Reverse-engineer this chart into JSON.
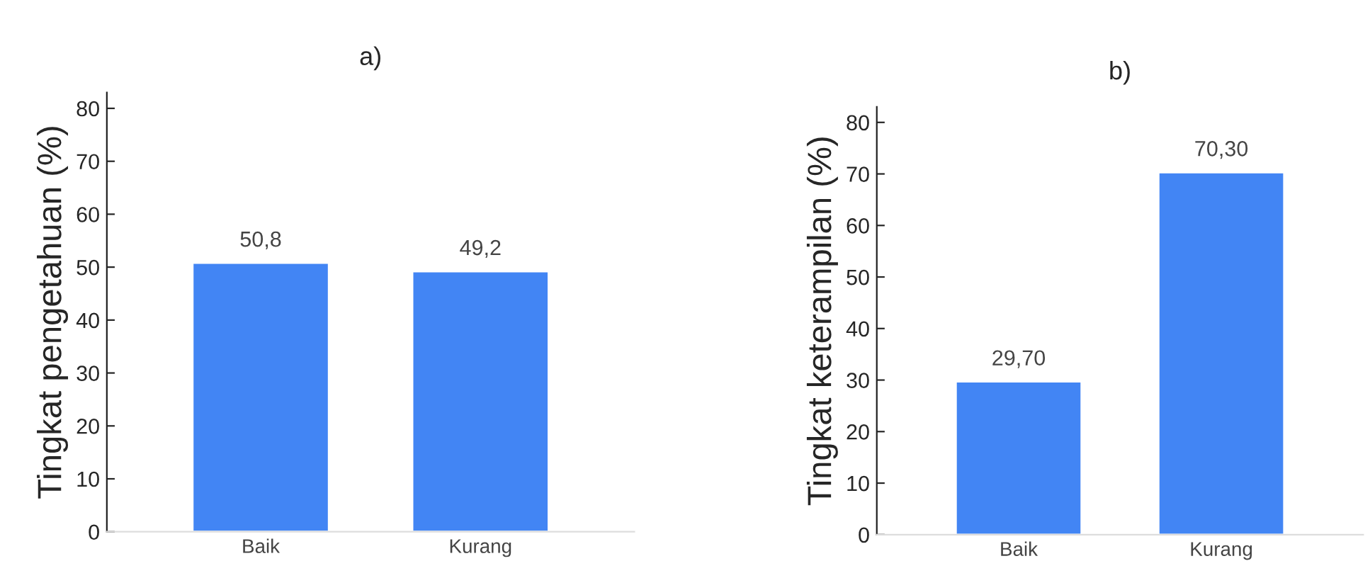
{
  "chart_data": [
    {
      "type": "bar",
      "title": "a)",
      "ylabel": "Tingkat pengetahuan (%)",
      "categories": [
        "Baik",
        "Kurang"
      ],
      "values": [
        50.8,
        49.2
      ],
      "value_labels": [
        "50,8",
        "49,2"
      ],
      "color": "#4285f4",
      "ylim": [
        0,
        83
      ],
      "yticks": [
        0,
        10,
        20,
        30,
        40,
        50,
        60,
        70,
        80
      ],
      "grid": false,
      "legend": false
    },
    {
      "type": "bar",
      "title": "b)",
      "ylabel": "Tingkat keterampilan (%)",
      "categories": [
        "Baik",
        "Kurang"
      ],
      "values": [
        29.7,
        70.3
      ],
      "value_labels": [
        "29,70",
        "70,30"
      ],
      "color": "#4285f4",
      "ylim": [
        0,
        83
      ],
      "yticks": [
        0,
        10,
        20,
        30,
        40,
        50,
        60,
        70,
        80
      ],
      "grid": false,
      "legend": false
    }
  ]
}
